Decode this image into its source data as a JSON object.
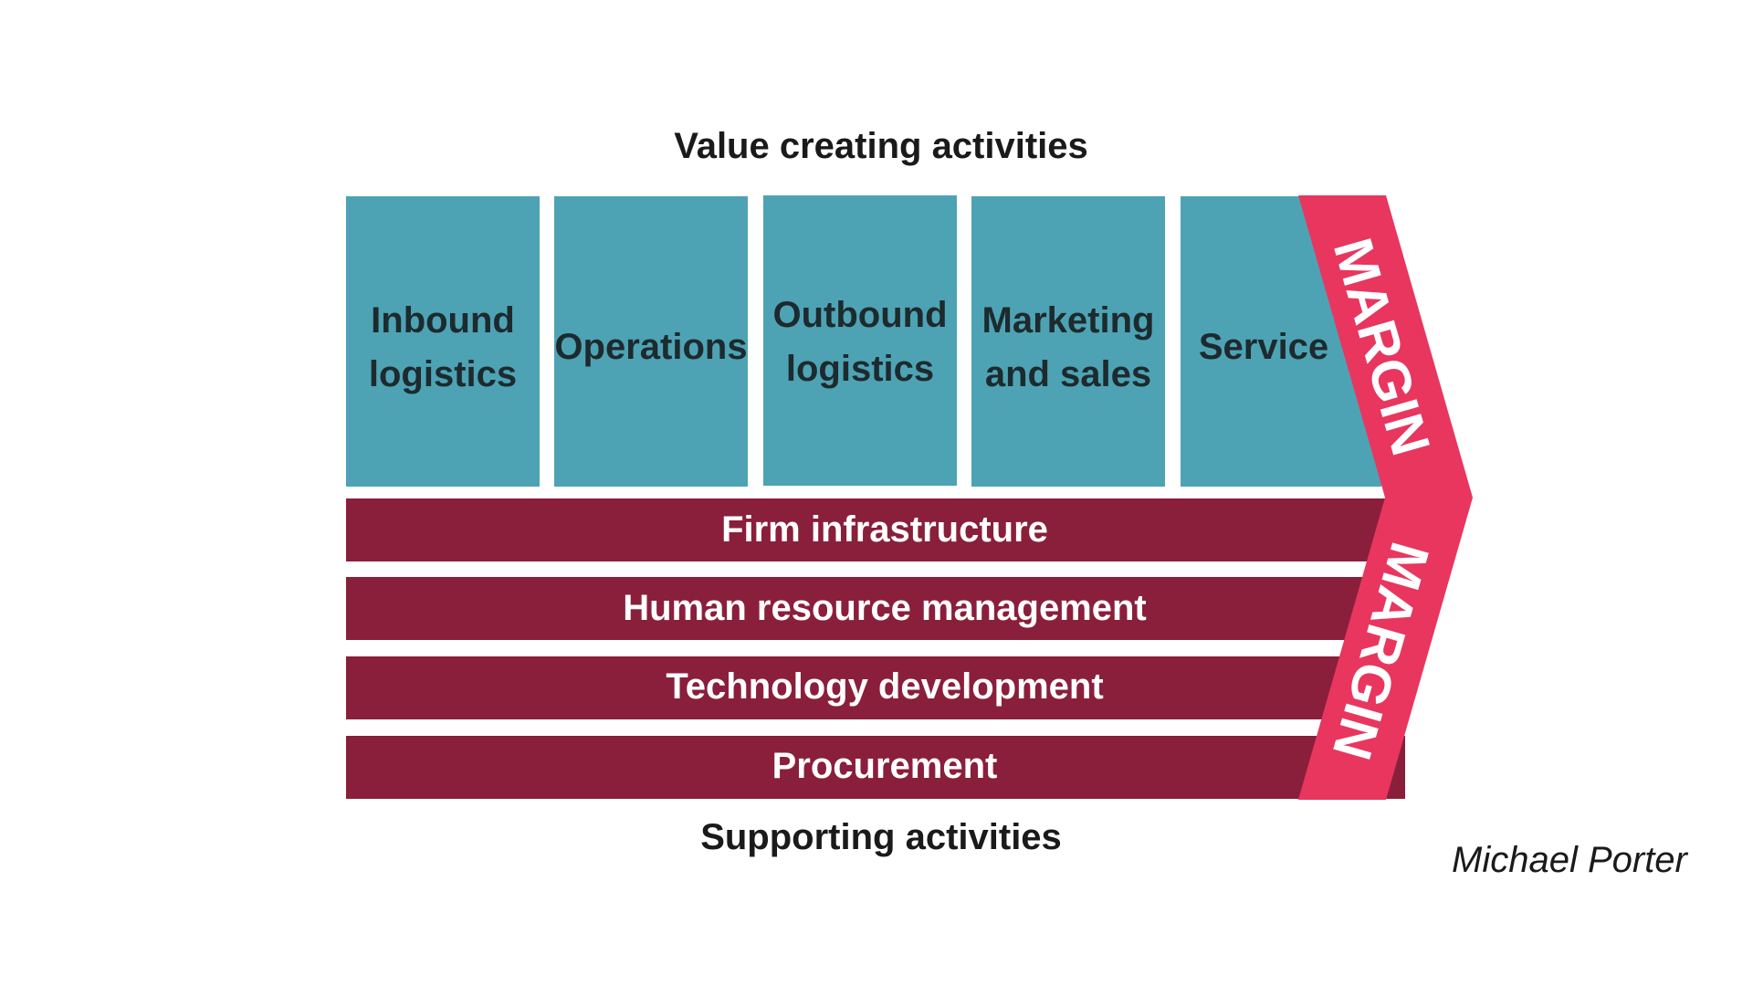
{
  "headings": {
    "primary": "Value creating activities",
    "support": "Supporting activities"
  },
  "primary_activities": [
    {
      "line1": "Inbound",
      "line2": "logistics"
    },
    {
      "line1": "Operations",
      "line2": ""
    },
    {
      "line1": "Outbound",
      "line2": "logistics"
    },
    {
      "line1": "Marketing",
      "line2": "and sales"
    },
    {
      "line1": "Service",
      "line2": ""
    }
  ],
  "support_activities": [
    "Firm infrastructure",
    "Human resource management",
    "Technology development",
    "Procurement"
  ],
  "margin_label": "MARGIN",
  "attribution": "Michael Porter",
  "colors": {
    "primary_activity": "#4da3b4",
    "support_activity": "#8a1f3b",
    "margin": "#e8365f",
    "text_dark": "#1d2a2e",
    "text_light": "#ffffff"
  }
}
